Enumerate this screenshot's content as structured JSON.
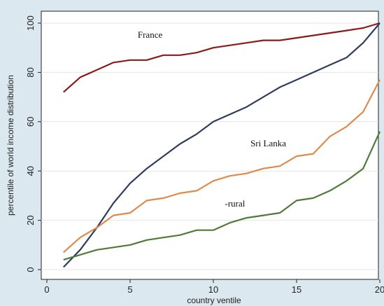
{
  "chart_data": {
    "type": "line",
    "xlabel": "country ventile",
    "ylabel": "percentile of world income distribution",
    "xlim": [
      0,
      20
    ],
    "ylim": [
      0,
      100
    ],
    "xticks": [
      0,
      5,
      10,
      15,
      20
    ],
    "yticks": [
      0,
      20,
      40,
      60,
      80,
      100
    ],
    "grid": "horizontal",
    "legend": "none",
    "x": [
      1,
      2,
      3,
      4,
      5,
      6,
      7,
      8,
      9,
      10,
      11,
      12,
      13,
      14,
      15,
      16,
      17,
      18,
      19,
      20
    ],
    "series": [
      {
        "name": "France",
        "color": "#8b1a1a",
        "values": [
          72,
          78,
          81,
          84,
          85,
          85,
          87,
          87,
          88,
          90,
          91,
          92,
          93,
          93,
          94,
          95,
          96,
          97,
          98,
          100
        ]
      },
      {
        "name": "",
        "color": "#2e3d5e",
        "values": [
          1,
          8,
          17,
          27,
          35,
          41,
          46,
          51,
          55,
          60,
          63,
          66,
          70,
          74,
          77,
          80,
          83,
          86,
          92,
          100
        ]
      },
      {
        "name": "Sri Lanka",
        "color": "#e08a4a",
        "values": [
          7,
          13,
          17,
          22,
          23,
          28,
          29,
          31,
          32,
          36,
          38,
          39,
          41,
          42,
          46,
          47,
          54,
          58,
          64,
          77
        ]
      },
      {
        "name": "-rural",
        "color": "#4f7a3a",
        "values": [
          4,
          6,
          8,
          9,
          10,
          12,
          13,
          14,
          16,
          16,
          19,
          21,
          22,
          23,
          28,
          29,
          32,
          36,
          41,
          56
        ]
      }
    ]
  }
}
